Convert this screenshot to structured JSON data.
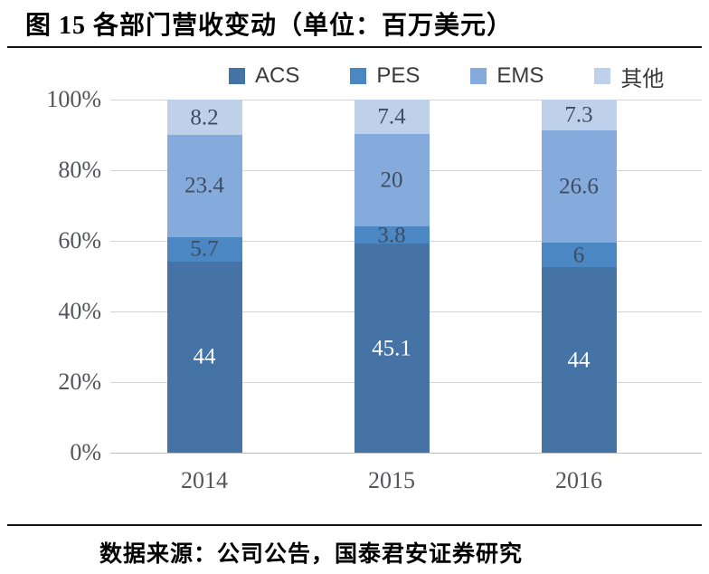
{
  "figure": {
    "title": "图 15 各部门营收变动（单位：百万美元）",
    "source_note": "数据来源：公司公告，国泰君安证券研究"
  },
  "colors": {
    "gridline": "#d4d4d4",
    "baseline": "#bfbfbf",
    "axis_text": "#54555c",
    "legend_text": "#3a3a3a",
    "dark_label": "#3e4d61",
    "white_label": "#ffffff"
  },
  "chart_data": {
    "type": "bar",
    "subtype": "stacked-100-percent",
    "title": "图 15 各部门营收变动（单位：百万美元）",
    "unit": "百万美元",
    "categories": [
      "2014",
      "2015",
      "2016"
    ],
    "series": [
      {
        "name": "ACS",
        "values": [
          44,
          45.1,
          44
        ],
        "color": "#4673a5",
        "label_color": "#ffffff"
      },
      {
        "name": "PES",
        "values": [
          5.7,
          3.8,
          6
        ],
        "color": "#4b87c3",
        "label_color": "#3e4d61"
      },
      {
        "name": "EMS",
        "values": [
          23.4,
          20,
          26.6
        ],
        "color": "#85aadc",
        "label_color": "#3e4d61"
      },
      {
        "name": "其他",
        "values": [
          8.2,
          7.4,
          7.3
        ],
        "color": "#bfd1ea",
        "label_color": "#3e4d61"
      }
    ],
    "y_axis": {
      "tick_labels": [
        "0%",
        "20%",
        "40%",
        "60%",
        "80%",
        "100%"
      ],
      "min": 0,
      "max": 100,
      "gridlines": true
    },
    "legend": {
      "position": "top",
      "entries": [
        "ACS",
        "PES",
        "EMS",
        "其他"
      ]
    }
  }
}
